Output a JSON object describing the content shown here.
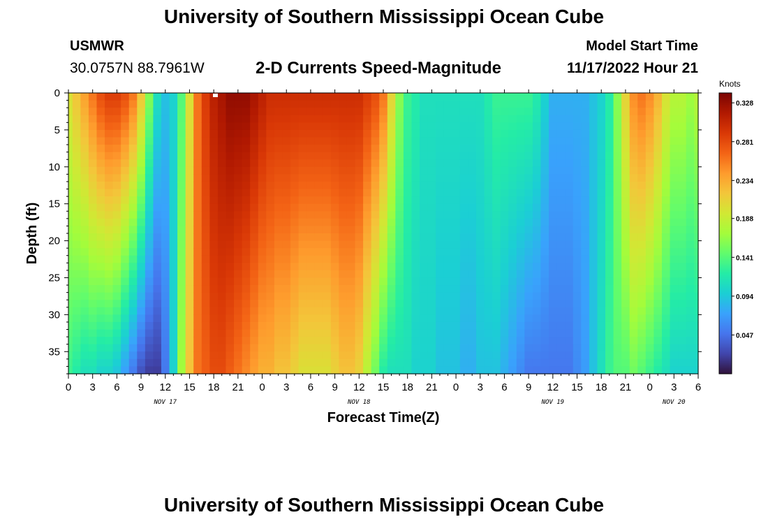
{
  "header": {
    "title": "University of Southern Mississippi Ocean Cube",
    "station_name": "USMWR",
    "station_coords": "30.0757N  88.7961W",
    "plot_title": "2-D Currents Speed-Magnitude",
    "model_start_label": "Model Start Time",
    "model_start_value": "11/17/2022 Hour 21"
  },
  "footer": {
    "title": "University of Southern Mississippi Ocean Cube"
  },
  "chart_data": {
    "type": "heatmap",
    "xlabel": "Forecast Time(Z)",
    "ylabel": "Depth (ft)",
    "colorbar_label": "Knots",
    "x_ticks": [
      "0",
      "3",
      "6",
      "9",
      "12",
      "15",
      "18",
      "21",
      "0",
      "3",
      "6",
      "9",
      "12",
      "15",
      "18",
      "21",
      "0",
      "3",
      "6",
      "9",
      "12",
      "15",
      "18",
      "21",
      "0",
      "3",
      "6"
    ],
    "x_range_hours": [
      0,
      78
    ],
    "day_labels": [
      {
        "label": "NOV 17",
        "hour": 12
      },
      {
        "label": "NOV 18",
        "hour": 36
      },
      {
        "label": "NOV 19",
        "hour": 60
      },
      {
        "label": "NOV 20",
        "hour": 75
      }
    ],
    "y_ticks": [
      0,
      5,
      10,
      15,
      20,
      25,
      30,
      35
    ],
    "ylim": [
      0,
      38
    ],
    "y_inverted": true,
    "colorbar_ticks": [
      0.328,
      0.281,
      0.234,
      0.188,
      0.141,
      0.094,
      0.047
    ],
    "colorbar_range": [
      0.0,
      0.34
    ],
    "colormap": [
      "#30123b",
      "#4145ab",
      "#4675ed",
      "#39a2fc",
      "#1bcfd4",
      "#24eca6",
      "#61fc6c",
      "#a4fc3b",
      "#d1e834",
      "#f3c63a",
      "#fe9b2d",
      "#f36315",
      "#d93806",
      "#b11901",
      "#7a0402"
    ],
    "time_step_hours": 1,
    "depth_step_ft": 1,
    "surface_speed_by_hour": [
      0.2,
      0.22,
      0.24,
      0.26,
      0.28,
      0.29,
      0.29,
      0.28,
      0.26,
      0.22,
      0.16,
      0.11,
      0.09,
      0.1,
      0.14,
      0.2,
      0.26,
      0.29,
      0.31,
      0.32,
      0.33,
      0.33,
      0.33,
      0.32,
      0.31,
      0.3,
      0.3,
      0.3,
      0.3,
      0.3,
      0.3,
      0.3,
      0.3,
      0.3,
      0.3,
      0.3,
      0.3,
      0.29,
      0.28,
      0.26,
      0.21,
      0.16,
      0.13,
      0.12,
      0.11,
      0.11,
      0.11,
      0.11,
      0.11,
      0.11,
      0.11,
      0.11,
      0.12,
      0.13,
      0.13,
      0.13,
      0.13,
      0.13,
      0.12,
      0.1,
      0.08,
      0.08,
      0.08,
      0.08,
      0.08,
      0.09,
      0.1,
      0.12,
      0.16,
      0.21,
      0.25,
      0.26,
      0.25,
      0.23,
      0.2,
      0.18,
      0.18,
      0.17,
      0.18
    ],
    "bottom_speed_by_hour": [
      0.13,
      0.12,
      0.11,
      0.11,
      0.1,
      0.1,
      0.09,
      0.07,
      0.05,
      0.03,
      0.02,
      0.02,
      0.05,
      0.1,
      0.17,
      0.22,
      0.26,
      0.27,
      0.28,
      0.28,
      0.27,
      0.26,
      0.25,
      0.24,
      0.23,
      0.23,
      0.22,
      0.22,
      0.21,
      0.2,
      0.2,
      0.2,
      0.2,
      0.21,
      0.22,
      0.22,
      0.21,
      0.18,
      0.15,
      0.12,
      0.11,
      0.11,
      0.11,
      0.1,
      0.1,
      0.1,
      0.09,
      0.09,
      0.09,
      0.08,
      0.08,
      0.09,
      0.09,
      0.09,
      0.08,
      0.07,
      0.06,
      0.05,
      0.05,
      0.05,
      0.05,
      0.05,
      0.05,
      0.06,
      0.07,
      0.09,
      0.11,
      0.13,
      0.14,
      0.14,
      0.15,
      0.14,
      0.13,
      0.12,
      0.11,
      0.1,
      0.1,
      0.1,
      0.1
    ]
  }
}
